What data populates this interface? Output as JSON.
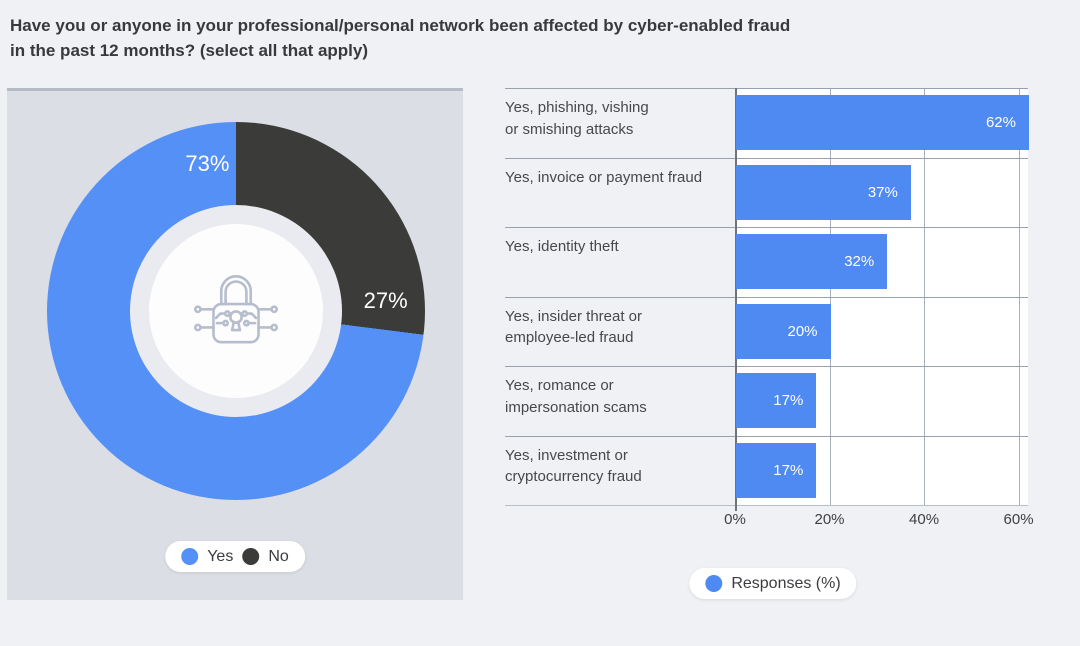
{
  "title": {
    "text": "Have you or anyone in your professional/personal network been affected by cyber-enabled fraud\nin the past 12 months? (select all that apply)"
  },
  "colors": {
    "page_bg": "#eff1f5",
    "panel_bg": "#dbdfe5",
    "panel_border": "#b5bbc5",
    "donut_blue": "#5590f7",
    "donut_dark": "#3b3b3a",
    "bar_blue": "#4f89f2",
    "grid_line": "#9aa1ab",
    "axis_line": "#6e747c",
    "lock_icon": "#b6bdcd"
  },
  "donut_legend": [
    {
      "label": "Yes",
      "color": "#5590f7"
    },
    {
      "label": "No",
      "color": "#3b3b3a"
    }
  ],
  "bar_legend": {
    "label": "Responses (%)",
    "color": "#4f89f2"
  },
  "chart_data": [
    {
      "type": "pie",
      "subtype": "donut",
      "categories": [
        "Yes",
        "No"
      ],
      "values": [
        73,
        27
      ],
      "data_labels": [
        "73%",
        "27%"
      ],
      "colors": [
        "#5590f7",
        "#3b3b3a"
      ],
      "legend_position": "bottom",
      "center_icon": "cyber-lock",
      "start": "No-at-top-clockwise"
    },
    {
      "type": "bar",
      "orientation": "horizontal",
      "series_name": "Responses (%)",
      "categories": [
        "Yes, phishing, vishing or smishing attacks",
        "Yes, invoice or payment fraud",
        "Yes, identity theft",
        "Yes, insider threat or employee-led fraud",
        "Yes, romance or impersonation scams",
        "Yes, investment or cryptocurrency fraud"
      ],
      "categories_display": [
        "Yes, phishing, vishing\nor smishing attacks",
        "Yes, invoice or payment fraud",
        "Yes, identity theft",
        "Yes, insider threat or\nemployee-led fraud",
        "Yes, romance or\nimpersonation scams",
        "Yes, investment or\ncryptocurrency fraud"
      ],
      "values": [
        62,
        37,
        32,
        20,
        17,
        17
      ],
      "data_labels": [
        "62%",
        "37%",
        "32%",
        "20%",
        "17%",
        "17%"
      ],
      "xlim": [
        0,
        62
      ],
      "x_ticks": [
        0,
        20,
        40,
        60
      ],
      "x_tick_labels": [
        "0%",
        "20%",
        "40%",
        "60%"
      ],
      "bar_color": "#4f89f2",
      "grid": true,
      "legend_position": "bottom"
    }
  ]
}
